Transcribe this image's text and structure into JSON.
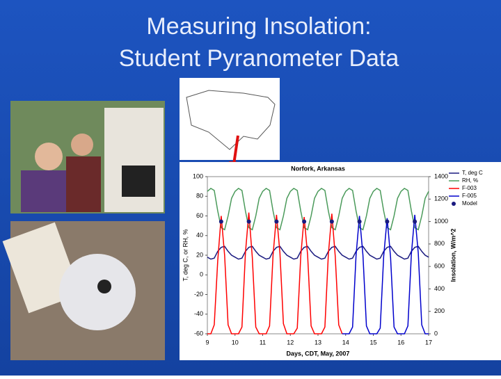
{
  "slide_title": [
    "Measuring Insolation:",
    "Student Pyranometer Data"
  ],
  "chart_data": {
    "type": "line",
    "title": "Norfork, Arkansas",
    "x_label": "Days, CDT, May, 2007",
    "y_label": "T, deg C, or RH, %",
    "y2_label": "Insolation, W/m^2",
    "x": [
      9,
      9.125,
      9.25,
      9.375,
      9.5,
      9.625,
      9.75,
      9.875,
      10,
      10.125,
      10.25,
      10.375,
      10.5,
      10.625,
      10.75,
      10.875,
      11,
      11.125,
      11.25,
      11.375,
      11.5,
      11.625,
      11.75,
      11.875,
      12,
      12.125,
      12.25,
      12.375,
      12.5,
      12.625,
      12.75,
      12.875,
      13,
      13.125,
      13.25,
      13.375,
      13.5,
      13.625,
      13.75,
      13.875,
      14,
      14.125,
      14.25,
      14.375,
      14.5,
      14.625,
      14.75,
      14.875,
      15,
      15.125,
      15.25,
      15.375,
      15.5,
      15.625,
      15.75,
      15.875,
      16,
      16.125,
      16.25,
      16.375,
      16.5,
      16.625,
      16.75,
      16.875,
      17
    ],
    "xlim": [
      9,
      17
    ],
    "xticks": [
      9,
      10,
      11,
      12,
      13,
      14,
      15,
      16,
      17
    ],
    "ylim": [
      -60,
      100
    ],
    "yticks": [
      100,
      80,
      60,
      40,
      20,
      0,
      -20,
      -40,
      -60
    ],
    "y2lim": [
      0,
      1400
    ],
    "y2ticks": [
      1400,
      1200,
      1000,
      800,
      600,
      400,
      200,
      0
    ],
    "legend": "right",
    "series": [
      {
        "name": "T, deg C",
        "color": "#1a1a80",
        "axis": "y",
        "values": [
          18,
          16,
          17,
          24,
          28,
          29,
          24,
          20,
          18,
          16,
          17,
          24,
          28,
          29,
          24,
          20,
          18,
          16,
          17,
          24,
          28,
          29,
          24,
          20,
          18,
          16,
          17,
          24,
          28,
          29,
          24,
          20,
          18,
          16,
          17,
          24,
          28,
          29,
          24,
          20,
          18,
          16,
          17,
          24,
          28,
          29,
          24,
          20,
          18,
          16,
          17,
          24,
          28,
          29,
          24,
          20,
          18,
          16,
          17,
          24,
          28,
          29,
          24,
          20,
          18
        ]
      },
      {
        "name": "RH, %",
        "color": "#4a9a5a",
        "axis": "y",
        "values": [
          85,
          88,
          86,
          65,
          48,
          46,
          60,
          78,
          85,
          88,
          86,
          65,
          48,
          46,
          60,
          78,
          85,
          88,
          86,
          65,
          48,
          46,
          60,
          78,
          85,
          88,
          86,
          65,
          48,
          46,
          60,
          78,
          85,
          88,
          86,
          65,
          48,
          46,
          60,
          78,
          85,
          88,
          86,
          65,
          48,
          46,
          60,
          78,
          85,
          88,
          86,
          65,
          48,
          46,
          60,
          78,
          85,
          88,
          86,
          65,
          48,
          46,
          60,
          78,
          85
        ]
      },
      {
        "name": "F-003",
        "color": "#ff0000",
        "axis": "y2",
        "values": [
          0,
          0,
          80,
          650,
          1050,
          700,
          80,
          0,
          0,
          0,
          60,
          720,
          1080,
          680,
          60,
          0,
          0,
          0,
          70,
          700,
          1060,
          720,
          90,
          0,
          0,
          0,
          50,
          690,
          1040,
          700,
          70,
          0,
          0,
          0,
          60,
          710,
          1070,
          690,
          80,
          0,
          null,
          null,
          null,
          null,
          null,
          null,
          null,
          null,
          null,
          null,
          null,
          null,
          null,
          null,
          null,
          null,
          null,
          null,
          null,
          null,
          null,
          null,
          null,
          null,
          null
        ]
      },
      {
        "name": "F-005",
        "color": "#0000cc",
        "axis": "y2",
        "values": [
          null,
          null,
          null,
          null,
          null,
          null,
          null,
          null,
          null,
          null,
          null,
          null,
          null,
          null,
          null,
          null,
          null,
          null,
          null,
          null,
          null,
          null,
          null,
          null,
          null,
          null,
          null,
          null,
          null,
          null,
          null,
          null,
          null,
          null,
          null,
          null,
          null,
          null,
          null,
          0,
          0,
          0,
          60,
          700,
          1050,
          700,
          70,
          0,
          0,
          0,
          50,
          690,
          1030,
          680,
          60,
          0,
          0,
          0,
          70,
          710,
          1060,
          720,
          80,
          0,
          0
        ]
      },
      {
        "name": "Model",
        "color": "#1a1a80",
        "axis": "y2",
        "marker": true,
        "x": [
          9.5,
          10.5,
          11.5,
          12.5,
          13.5,
          14.5,
          15.5,
          16.5
        ],
        "values": [
          1000,
          1000,
          1000,
          1000,
          1000,
          1000,
          1000,
          1000
        ]
      }
    ]
  }
}
